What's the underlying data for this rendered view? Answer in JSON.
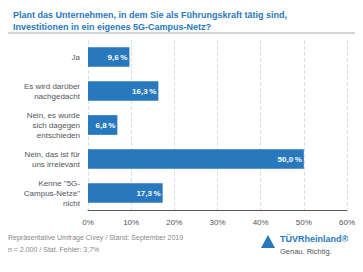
{
  "chart_data": {
    "type": "bar",
    "orientation": "horizontal",
    "title": "Plant das Unternehmen, in dem Sie als Führungskraft tätig sind,\nInvestitionen in ein eigenes 5G-Campus-Netz?",
    "categories": [
      "Ja",
      "Es wird darüber\nnachgedacht",
      "Nein, es wurde\nsich dagegen\nentschieden",
      "Nein, das ist für\nuns irrelevant",
      "Kenne \"5G-\nCampus-Netze\"\nnicht"
    ],
    "values": [
      9.6,
      16.3,
      6.8,
      50.0,
      17.3
    ],
    "value_labels": [
      "9,6 %",
      "16,3 %",
      "6,8 %",
      "50,0 %",
      "17,3 %"
    ],
    "data_labels": true,
    "color": "#2878be",
    "xlim": [
      0,
      60
    ],
    "xticks": [
      {
        "value": 0,
        "label": "0%"
      },
      {
        "value": 10,
        "label": "10%"
      },
      {
        "value": 20,
        "label": "20%"
      },
      {
        "value": 30,
        "label": "30%"
      },
      {
        "value": 40,
        "label": "40%"
      },
      {
        "value": 50,
        "label": "50%"
      },
      {
        "value": 60,
        "label": "60%"
      }
    ],
    "grid": true,
    "annotations": [
      "Repräsentative Umfrage Civey / Stand: September 2019",
      "n = 2.000 / Stat. Fehler: 3,7%",
      "TÜVRheinland®",
      "Genau. Richtig."
    ]
  }
}
